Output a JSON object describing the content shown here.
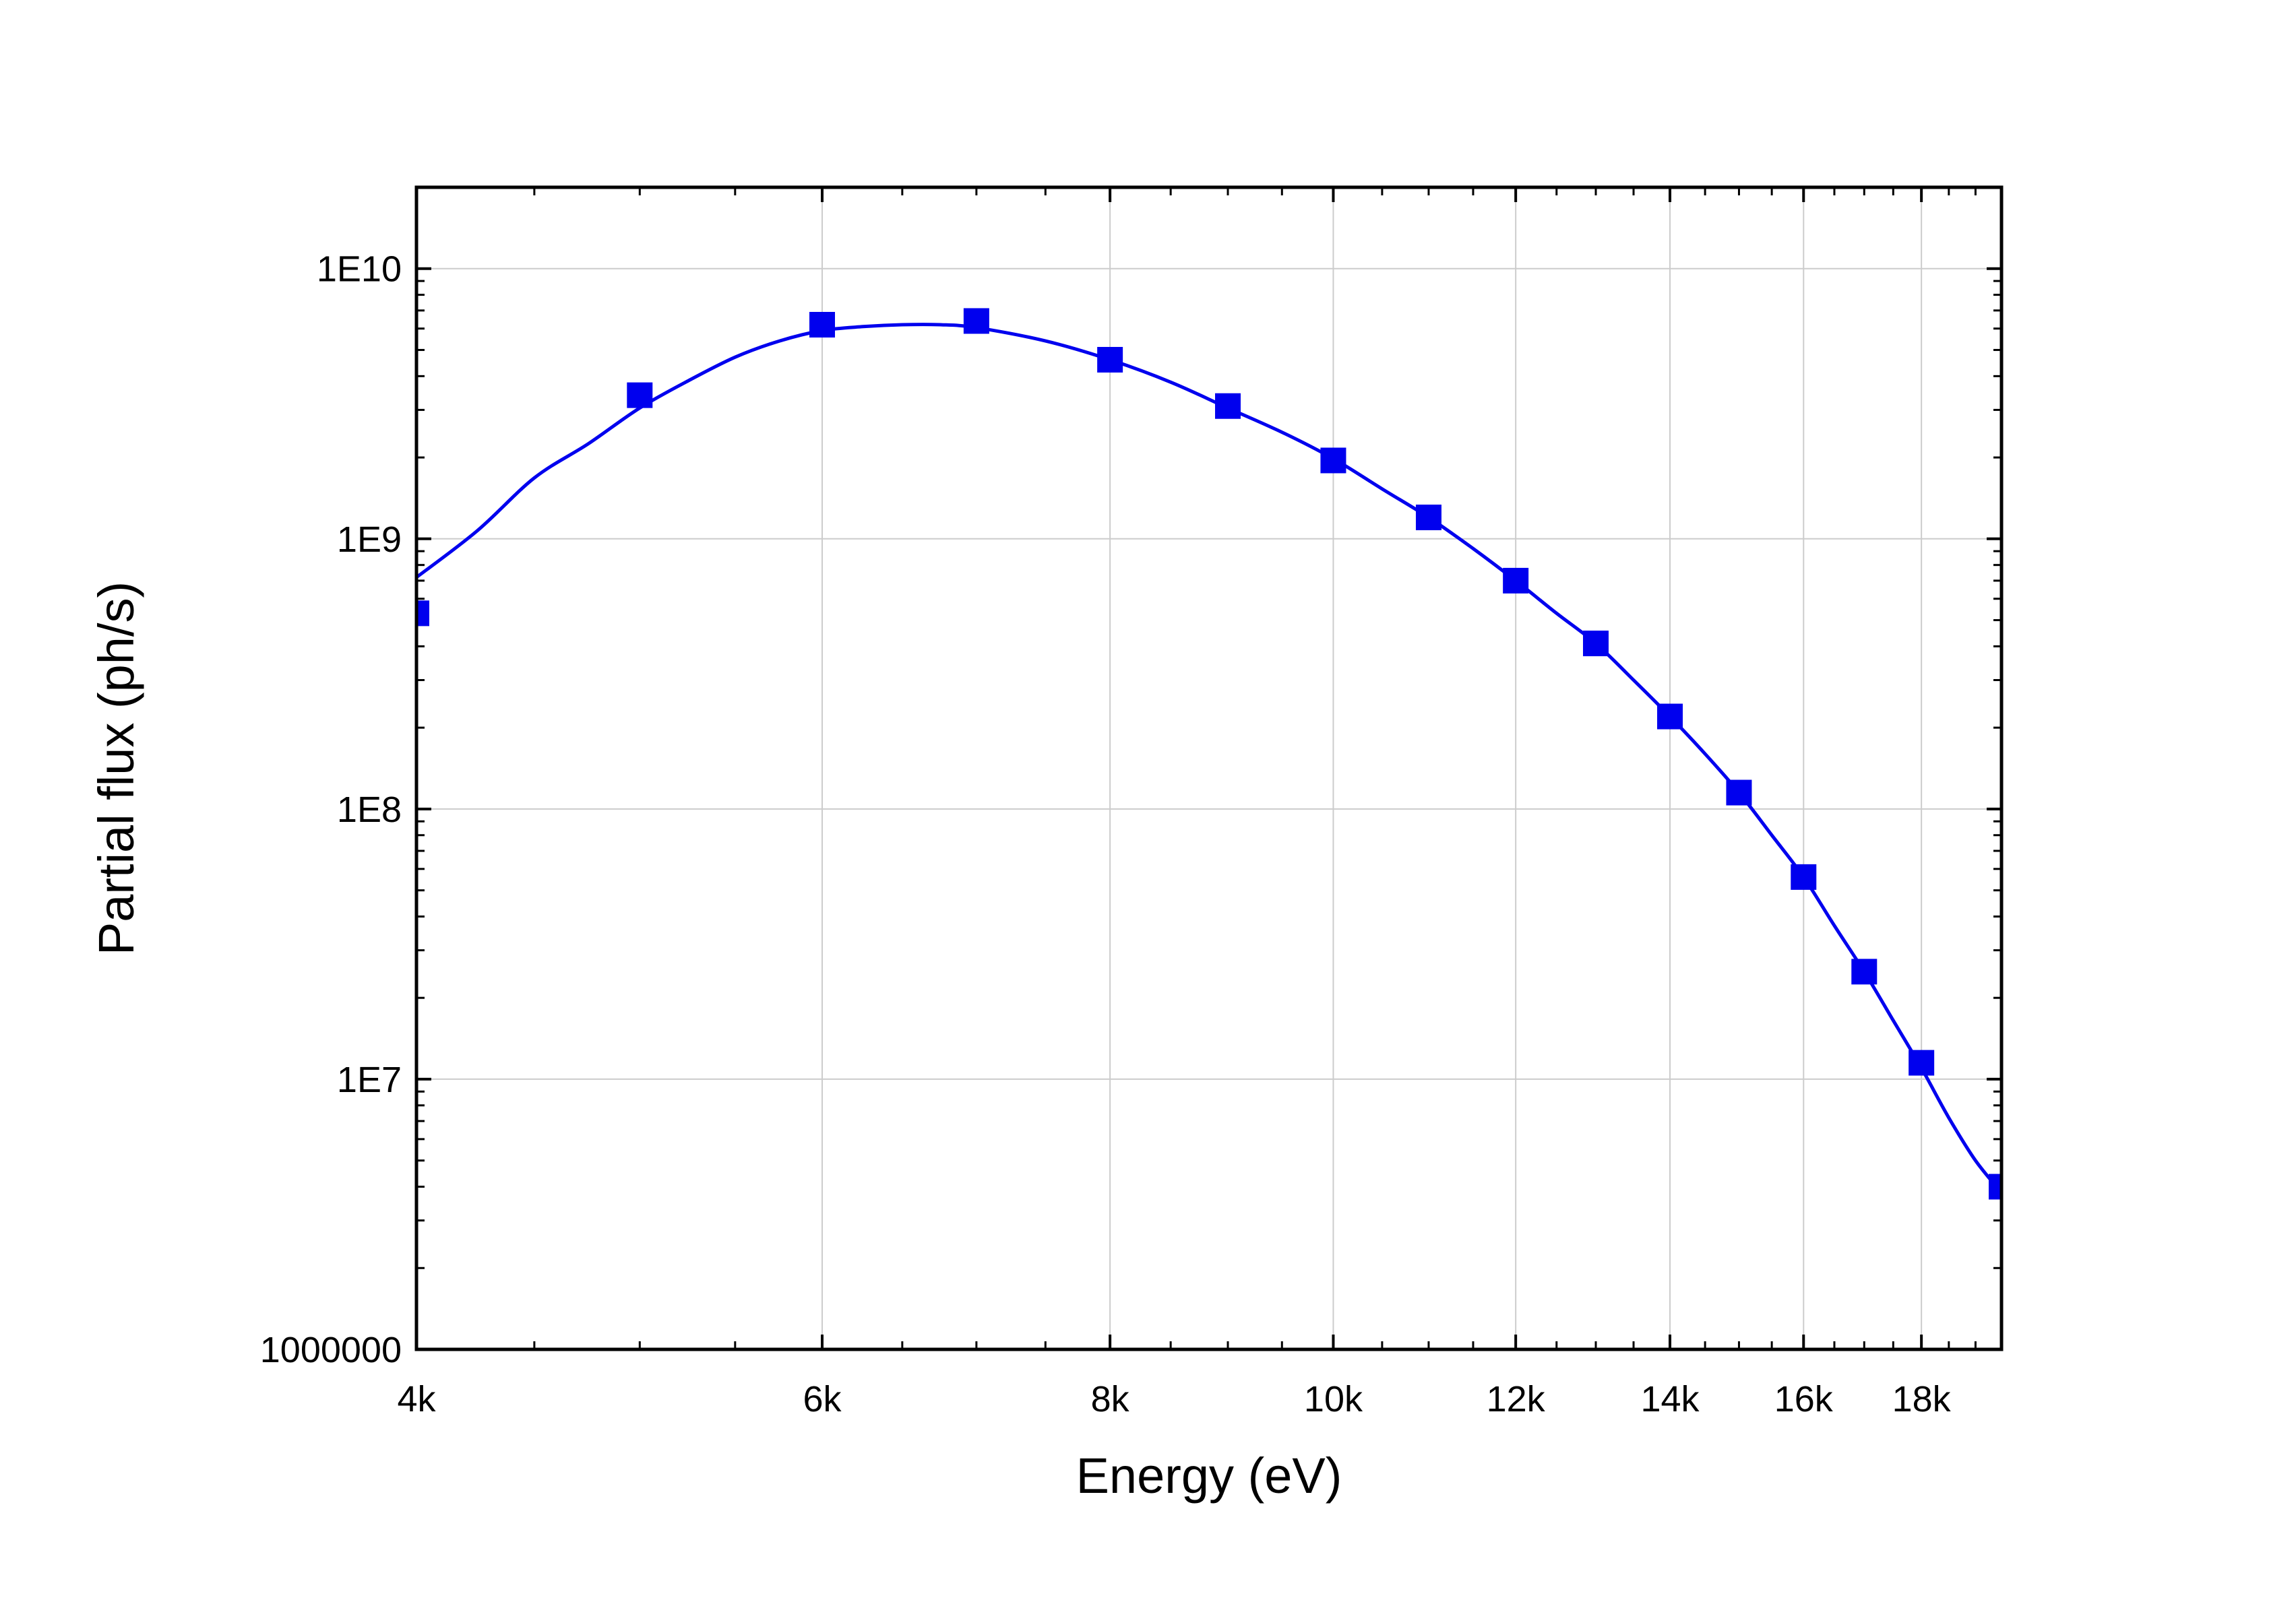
{
  "chart_data": {
    "type": "scatter",
    "title": "",
    "xlabel": "Energy (eV)",
    "ylabel": "Partial flux (ph/s)",
    "x_scale": "log",
    "y_scale": "log",
    "xlim": [
      4000,
      19500
    ],
    "ylim": [
      1000000,
      20000000000
    ],
    "grid": true,
    "legend": "none",
    "x_ticks": [
      {
        "value": 4000,
        "label": "4k"
      },
      {
        "value": 6000,
        "label": "6k"
      },
      {
        "value": 8000,
        "label": "8k"
      },
      {
        "value": 10000,
        "label": "10k"
      },
      {
        "value": 12000,
        "label": "12k"
      },
      {
        "value": 14000,
        "label": "14k"
      },
      {
        "value": 16000,
        "label": "16k"
      },
      {
        "value": 18000,
        "label": "18k"
      }
    ],
    "y_ticks": [
      {
        "value": 1000000,
        "label": "1000000"
      },
      {
        "value": 10000000,
        "label": "1E7"
      },
      {
        "value": 100000000,
        "label": "1E8"
      },
      {
        "value": 1000000000,
        "label": "1E9"
      },
      {
        "value": 10000000000,
        "label": "1E10"
      }
    ],
    "series": [
      {
        "style": "markers",
        "marker": "square",
        "color": "#0000ee",
        "x": [
          4000,
          5000,
          6000,
          7000,
          8000,
          9000,
          10000,
          11000,
          12000,
          13000,
          14000,
          15000,
          16000,
          17000,
          18000,
          19500
        ],
        "y": [
          530000000,
          3400000000,
          6200000000,
          6400000000,
          4600000000,
          3100000000,
          1950000000,
          1200000000,
          700000000,
          410000000,
          220000000,
          115000000,
          56000000,
          25000000,
          11500000,
          4000000
        ]
      },
      {
        "style": "line",
        "color": "#0000ee",
        "x": [
          4000,
          4250,
          4500,
          4750,
          5000,
          5250,
          5500,
          5750,
          6000,
          6250,
          6500,
          6750,
          7000,
          7500,
          8000,
          8500,
          9000,
          9500,
          10000,
          10500,
          11000,
          11500,
          12000,
          12500,
          13000,
          13500,
          14000,
          14500,
          15000,
          15500,
          16000,
          16500,
          17000,
          17500,
          18000,
          18500,
          19000,
          19500
        ],
        "y": [
          720000000,
          1070000000,
          1680000000,
          2250000000,
          3050000000,
          3850000000,
          4700000000,
          5400000000,
          5900000000,
          6100000000,
          6200000000,
          6200000000,
          6050000000,
          5400000000,
          4600000000,
          3800000000,
          3050000000,
          2480000000,
          1980000000,
          1530000000,
          1200000000,
          920000000,
          700000000,
          530000000,
          410000000,
          300000000,
          220000000,
          160000000,
          115000000,
          80000000,
          56000000,
          37000000,
          25000000,
          16500000,
          11000000,
          7200000,
          5000000,
          3800000
        ]
      }
    ]
  }
}
